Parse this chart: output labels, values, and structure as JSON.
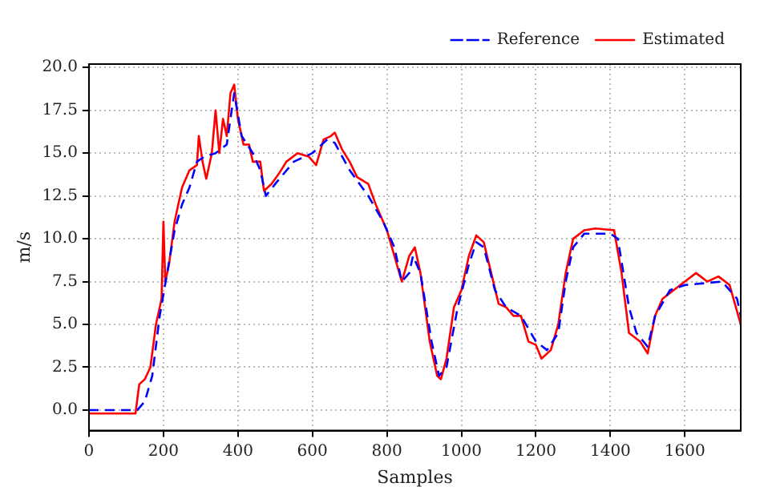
{
  "chart_data": {
    "type": "line",
    "xlabel": "Samples",
    "ylabel": "m/s",
    "xlim": [
      0,
      1750
    ],
    "ylim": [
      -1.2,
      20.2
    ],
    "xticks": [
      0,
      200,
      400,
      600,
      800,
      1000,
      1200,
      1400,
      1600
    ],
    "yticks": [
      {
        "value": 0,
        "label": "0.0"
      },
      {
        "value": 2.5,
        "label": "2.5"
      },
      {
        "value": 5,
        "label": "5.0"
      },
      {
        "value": 7.5,
        "label": "7.5"
      },
      {
        "value": 10,
        "label": "10.0"
      },
      {
        "value": 12.5,
        "label": "12.5"
      },
      {
        "value": 15,
        "label": "15.0"
      },
      {
        "value": 17.5,
        "label": "17.5"
      },
      {
        "value": 20,
        "label": "20.0"
      }
    ],
    "grid": true,
    "legend": "top right",
    "marker": "none",
    "series": [
      {
        "name": "Reference",
        "color": "#0000ff",
        "line_style": "dashed",
        "x": [
          0,
          130,
          150,
          170,
          190,
          210,
          230,
          250,
          270,
          290,
          310,
          340,
          370,
          390,
          410,
          440,
          460,
          475,
          500,
          550,
          600,
          640,
          660,
          700,
          750,
          790,
          820,
          840,
          860,
          870,
          890,
          920,
          940,
          960,
          990,
          1020,
          1040,
          1060,
          1090,
          1120,
          1160,
          1200,
          1230,
          1260,
          1280,
          1300,
          1330,
          1400,
          1420,
          1450,
          1470,
          1500,
          1520,
          1560,
          1600,
          1700,
          1740,
          1750
        ],
        "values": [
          0,
          0,
          0.5,
          2,
          5.5,
          8,
          10.5,
          12,
          13,
          14.5,
          14.8,
          15,
          15.5,
          18.5,
          16,
          15,
          14,
          12.5,
          13.2,
          14.5,
          15,
          15.8,
          15.6,
          14,
          12.5,
          11,
          9.5,
          7.5,
          8,
          9,
          8,
          4,
          2,
          2.5,
          6,
          8.5,
          9.8,
          9.5,
          7,
          6,
          5.5,
          4,
          3.5,
          4.5,
          7.5,
          9.5,
          10.3,
          10.3,
          10,
          6,
          4.5,
          3.7,
          5.5,
          7,
          7.3,
          7.5,
          6.5,
          5.5
        ]
      },
      {
        "name": "Estimated",
        "color": "#ff0000",
        "line_style": "solid",
        "x": [
          0,
          125,
          135,
          150,
          165,
          180,
          195,
          200,
          205,
          215,
          230,
          240,
          250,
          270,
          290,
          295,
          305,
          315,
          330,
          340,
          350,
          360,
          370,
          380,
          390,
          400,
          415,
          430,
          440,
          460,
          470,
          490,
          510,
          530,
          560,
          590,
          610,
          630,
          650,
          660,
          680,
          700,
          720,
          750,
          770,
          800,
          820,
          840,
          860,
          875,
          890,
          915,
          935,
          945,
          960,
          980,
          1000,
          1020,
          1040,
          1060,
          1080,
          1100,
          1120,
          1140,
          1160,
          1180,
          1200,
          1215,
          1240,
          1260,
          1280,
          1300,
          1330,
          1360,
          1410,
          1430,
          1450,
          1480,
          1500,
          1520,
          1540,
          1570,
          1600,
          1630,
          1660,
          1690,
          1720,
          1750
        ],
        "values": [
          -0.2,
          -0.2,
          1.5,
          1.8,
          2.5,
          5,
          6.5,
          11,
          7.5,
          8.5,
          11,
          12,
          13,
          14,
          14.3,
          16,
          14.5,
          13.5,
          15,
          17.5,
          15,
          17,
          16,
          18.5,
          19,
          17,
          15.5,
          15.5,
          14.5,
          14.5,
          12.8,
          13.2,
          13.8,
          14.5,
          15,
          14.8,
          14.3,
          15.8,
          16,
          16.2,
          15.2,
          14.5,
          13.6,
          13.2,
          12,
          10.5,
          9,
          7.5,
          9,
          9.5,
          8,
          4,
          2,
          1.8,
          3,
          6,
          7,
          9,
          10.2,
          9.8,
          8,
          6.2,
          6,
          5.5,
          5.5,
          4,
          3.8,
          3,
          3.5,
          5,
          8,
          10,
          10.5,
          10.6,
          10.5,
          8,
          4.5,
          4,
          3.3,
          5.5,
          6.5,
          7,
          7.5,
          8,
          7.5,
          7.8,
          7.3,
          5
        ]
      }
    ]
  }
}
